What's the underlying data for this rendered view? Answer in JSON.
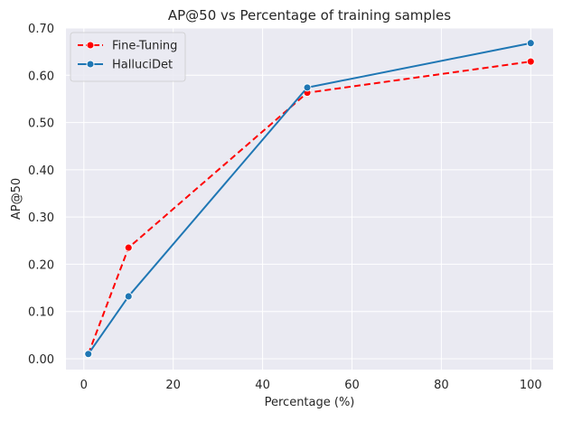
{
  "chart_data": {
    "type": "line",
    "title": "AP@50 vs Percentage of training samples",
    "xlabel": "Percentage (%)",
    "ylabel": "AP@50",
    "xlim": [
      -4.0,
      105.0
    ],
    "ylim": [
      -0.023,
      0.7
    ],
    "grid": true,
    "legend_position": "top-left",
    "x": [
      1,
      10,
      50,
      100
    ],
    "x_ticks": [
      0,
      20,
      40,
      60,
      80,
      100
    ],
    "x_tick_labels": [
      "0",
      "20",
      "40",
      "60",
      "80",
      "100"
    ],
    "y_ticks": [
      0.0,
      0.1,
      0.2,
      0.3,
      0.4,
      0.5,
      0.6,
      0.7
    ],
    "y_tick_labels": [
      "0.00",
      "0.10",
      "0.20",
      "0.30",
      "0.40",
      "0.50",
      "0.60",
      "0.70"
    ],
    "series": [
      {
        "name": "Fine-Tuning",
        "values": [
          0.01,
          0.235,
          0.563,
          0.629
        ],
        "color": "#ff0000",
        "linestyle": "dashed"
      },
      {
        "name": "HalluciDet",
        "values": [
          0.01,
          0.132,
          0.574,
          0.668
        ],
        "color": "#1f77b4",
        "linestyle": "solid"
      }
    ],
    "colors": {
      "background": "#eaeaf2",
      "grid": "#ffffff",
      "text": "#262626"
    }
  }
}
